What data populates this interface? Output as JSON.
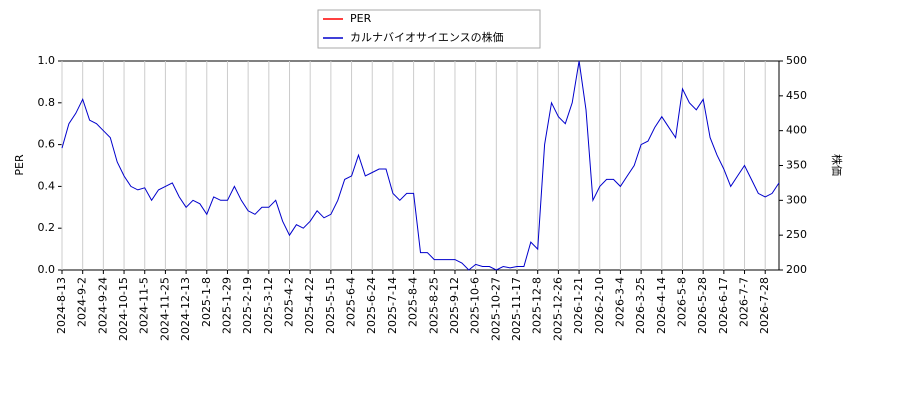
{
  "chart_data": {
    "type": "line",
    "categories": [
      "2024-8-13",
      null,
      null,
      "2024-9-2",
      null,
      null,
      "2024-9-24",
      null,
      null,
      "2024-10-15",
      null,
      null,
      "2024-11-5",
      null,
      null,
      "2024-11-25",
      null,
      null,
      "2024-12-13",
      null,
      null,
      "2025-1-8",
      null,
      null,
      "2025-1-29",
      null,
      null,
      "2025-2-19",
      null,
      null,
      "2025-3-12",
      null,
      null,
      "2025-4-2",
      null,
      null,
      "2025-4-22",
      null,
      null,
      "2025-5-15",
      null,
      null,
      "2025-6-4",
      null,
      null,
      "2025-6-24",
      null,
      null,
      "2025-7-14",
      null,
      null,
      "2025-8-4",
      null,
      null,
      "2025-8-25",
      null,
      null,
      "2025-9-12",
      null,
      null,
      "2025-10-6",
      null,
      null,
      "2025-10-27",
      null,
      null,
      "2025-11-17",
      null,
      null,
      "2025-12-8",
      null,
      null,
      "2025-12-26",
      null,
      null,
      "2026-1-21",
      null,
      null,
      "2026-2-10",
      null,
      null,
      "2026-3-4",
      null,
      null,
      "2026-3-25",
      null,
      null,
      "2026-4-14",
      null,
      null,
      "2026-5-8",
      null,
      null,
      "2026-5-28",
      null,
      null,
      "2026-6-17",
      null,
      null,
      "2026-7-7",
      null,
      null,
      "2026-7-28",
      null,
      null
    ],
    "series": [
      {
        "name": "PER",
        "color": "#ff0000",
        "axis": "y",
        "values": [
          null,
          null,
          null,
          null,
          null,
          null,
          null,
          null,
          null,
          null,
          null,
          null,
          null,
          null,
          null,
          null,
          null,
          null,
          null,
          null,
          null,
          null,
          null,
          null,
          null,
          null,
          null,
          null,
          null,
          null,
          null,
          null,
          null,
          null,
          null,
          null,
          null,
          null,
          null,
          null,
          null,
          null,
          null,
          null,
          null,
          null,
          null,
          null,
          null,
          null,
          null,
          null,
          null,
          null,
          null,
          null,
          null,
          null,
          null,
          null,
          null,
          null,
          null,
          null,
          null,
          null,
          null,
          null,
          null,
          null,
          null,
          null,
          null,
          null,
          null,
          null,
          null,
          null,
          null,
          null,
          null,
          null,
          null,
          null,
          null,
          null,
          null,
          null,
          null,
          null,
          null,
          null,
          null,
          null,
          null,
          null,
          null,
          null,
          null,
          null,
          null,
          null,
          null,
          null,
          null
        ]
      },
      {
        "name": "カルナバイオサイエンスの株価",
        "color": "#0000cc",
        "axis": "y2",
        "values": [
          375,
          410,
          425,
          445,
          415,
          410,
          400,
          390,
          355,
          335,
          320,
          315,
          318,
          300,
          315,
          320,
          325,
          305,
          290,
          300,
          295,
          280,
          305,
          300,
          300,
          320,
          300,
          285,
          280,
          290,
          290,
          300,
          270,
          250,
          265,
          260,
          270,
          285,
          275,
          280,
          300,
          330,
          335,
          365,
          335,
          340,
          345,
          345,
          310,
          300,
          310,
          310,
          225,
          225,
          215,
          215,
          215,
          215,
          210,
          200,
          208,
          205,
          205,
          200,
          205,
          203,
          205,
          205,
          240,
          230,
          380,
          440,
          420,
          410,
          440,
          500,
          430,
          300,
          320,
          330,
          330,
          320,
          335,
          350,
          380,
          385,
          405,
          420,
          405,
          390,
          460,
          440,
          430,
          445,
          390,
          365,
          345,
          320,
          335,
          350,
          330,
          310,
          305,
          310,
          325
        ]
      }
    ],
    "ylabel": "PER",
    "y2label": "株価",
    "ylim": [
      0,
      1
    ],
    "yticks": [
      {
        "value": 0,
        "label": "0.0"
      },
      0.2,
      0.4,
      0.6,
      0.8,
      {
        "value": 1,
        "label": "1.0"
      }
    ],
    "y2lim": [
      200,
      500
    ],
    "y2ticks": [
      200,
      250,
      300,
      350,
      400,
      450,
      500
    ],
    "grid": true
  }
}
